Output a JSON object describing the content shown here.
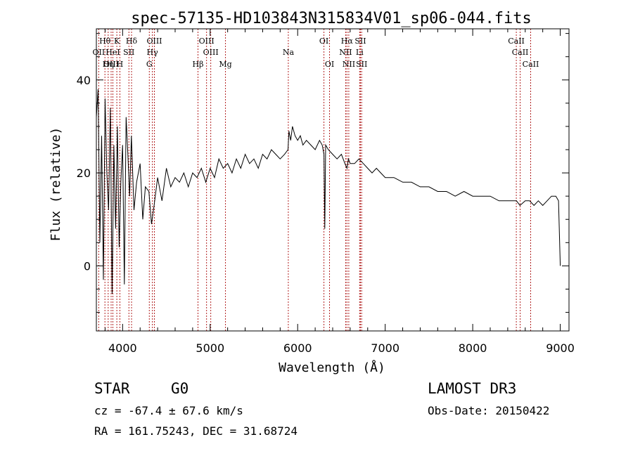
{
  "chart_data": {
    "type": "line",
    "title": "spec-57135-HD103843N315834V01_sp06-044.fits",
    "xlabel": "Wavelength (Å)",
    "ylabel": "Flux (relative)",
    "xlim": [
      3700,
      9100
    ],
    "ylim": [
      -14,
      51
    ],
    "x_ticks": [
      4000,
      5000,
      6000,
      7000,
      8000,
      9000
    ],
    "y_ticks": [
      0,
      20,
      40
    ],
    "series": [
      {
        "name": "spectrum",
        "x": [
          3700,
          3720,
          3740,
          3760,
          3780,
          3800,
          3820,
          3840,
          3860,
          3880,
          3900,
          3920,
          3940,
          3960,
          3980,
          4000,
          4020,
          4040,
          4060,
          4080,
          4100,
          4130,
          4160,
          4200,
          4230,
          4260,
          4300,
          4330,
          4360,
          4400,
          4450,
          4500,
          4550,
          4600,
          4650,
          4700,
          4750,
          4800,
          4850,
          4900,
          4950,
          5000,
          5050,
          5100,
          5150,
          5200,
          5250,
          5300,
          5350,
          5400,
          5450,
          5500,
          5550,
          5600,
          5650,
          5700,
          5750,
          5800,
          5850,
          5890,
          5900,
          5920,
          5940,
          5970,
          6000,
          6030,
          6060,
          6100,
          6150,
          6200,
          6250,
          6280,
          6300,
          6310,
          6320,
          6350,
          6400,
          6450,
          6500,
          6540,
          6563,
          6580,
          6600,
          6650,
          6700,
          6750,
          6800,
          6850,
          6900,
          6950,
          7000,
          7100,
          7200,
          7300,
          7400,
          7500,
          7600,
          7700,
          7800,
          7900,
          8000,
          8100,
          8200,
          8300,
          8400,
          8500,
          8540,
          8600,
          8650,
          8700,
          8750,
          8800,
          8850,
          8900,
          8950,
          8980,
          9000
        ],
        "values": [
          32,
          38,
          5,
          28,
          -3,
          36,
          20,
          12,
          34,
          -6,
          26,
          8,
          30,
          4,
          18,
          26,
          -4,
          32,
          24,
          15,
          28,
          12,
          18,
          22,
          10,
          17,
          16,
          9,
          13,
          19,
          14,
          21,
          17,
          19,
          18,
          20,
          17,
          20,
          19,
          21,
          18,
          21,
          19,
          23,
          21,
          22,
          20,
          23,
          21,
          24,
          22,
          23,
          21,
          24,
          23,
          25,
          24,
          23,
          24,
          25,
          29,
          27,
          30,
          28,
          27,
          28,
          26,
          27,
          26,
          25,
          27,
          26,
          24,
          8,
          26,
          25,
          24,
          23,
          24,
          22,
          21,
          23,
          22,
          22,
          23,
          22,
          21,
          20,
          21,
          20,
          19,
          19,
          18,
          18,
          17,
          17,
          16,
          16,
          15,
          16,
          15,
          15,
          15,
          14,
          14,
          14,
          13,
          14,
          14,
          13,
          14,
          13,
          14,
          15,
          15,
          14,
          0
        ]
      }
    ],
    "lines": [
      {
        "label": "Hθ",
        "wl": 3798,
        "row": 0
      },
      {
        "label": "K",
        "wl": 3934,
        "row": 0
      },
      {
        "label": "Hδ",
        "wl": 4102,
        "row": 0
      },
      {
        "label": "OIII",
        "wl": 4363,
        "row": 0
      },
      {
        "label": "OIII",
        "wl": 4959,
        "row": 0
      },
      {
        "label": "OI",
        "wl": 6300,
        "row": 0
      },
      {
        "label": "Hα",
        "wl": 6563,
        "row": 0
      },
      {
        "label": "SII",
        "wl": 6717,
        "row": 0
      },
      {
        "label": "CaII",
        "wl": 8498,
        "row": 0
      },
      {
        "label": "OII",
        "wl": 3727,
        "row": 1
      },
      {
        "label": "HeI",
        "wl": 3889,
        "row": 1
      },
      {
        "label": "SII",
        "wl": 4072,
        "row": 1
      },
      {
        "label": "Hγ",
        "wl": 4340,
        "row": 1
      },
      {
        "label": "OIII",
        "wl": 5007,
        "row": 1
      },
      {
        "label": "Na",
        "wl": 5893,
        "row": 1
      },
      {
        "label": "NII",
        "wl": 6548,
        "row": 1
      },
      {
        "label": "Li",
        "wl": 6708,
        "row": 1
      },
      {
        "label": "CaII",
        "wl": 8542,
        "row": 1
      },
      {
        "label": "OIII",
        "wl": 3869,
        "row": 2
      },
      {
        "label": "Hη",
        "wl": 3835,
        "row": 2
      },
      {
        "label": "H",
        "wl": 3969,
        "row": 2
      },
      {
        "label": "G",
        "wl": 4305,
        "row": 2
      },
      {
        "label": "Hβ",
        "wl": 4861,
        "row": 2
      },
      {
        "label": "Mg",
        "wl": 5175,
        "row": 2
      },
      {
        "label": "OI",
        "wl": 6364,
        "row": 2
      },
      {
        "label": "NII",
        "wl": 6584,
        "row": 2
      },
      {
        "label": "SII",
        "wl": 6731,
        "row": 2
      },
      {
        "label": "CaII",
        "wl": 8662,
        "row": 2
      }
    ]
  },
  "info": {
    "class": "STAR",
    "subclass": "G0",
    "survey": "LAMOST DR3",
    "cz": "cz = -67.4 ± 67.6 km/s",
    "obs_date": "Obs-Date: 20150422",
    "radec": "RA = 161.75243, DEC =  31.68724"
  },
  "colors": {
    "line_marker": "#b22222",
    "spectrum": "#000000",
    "axis": "#000000"
  }
}
